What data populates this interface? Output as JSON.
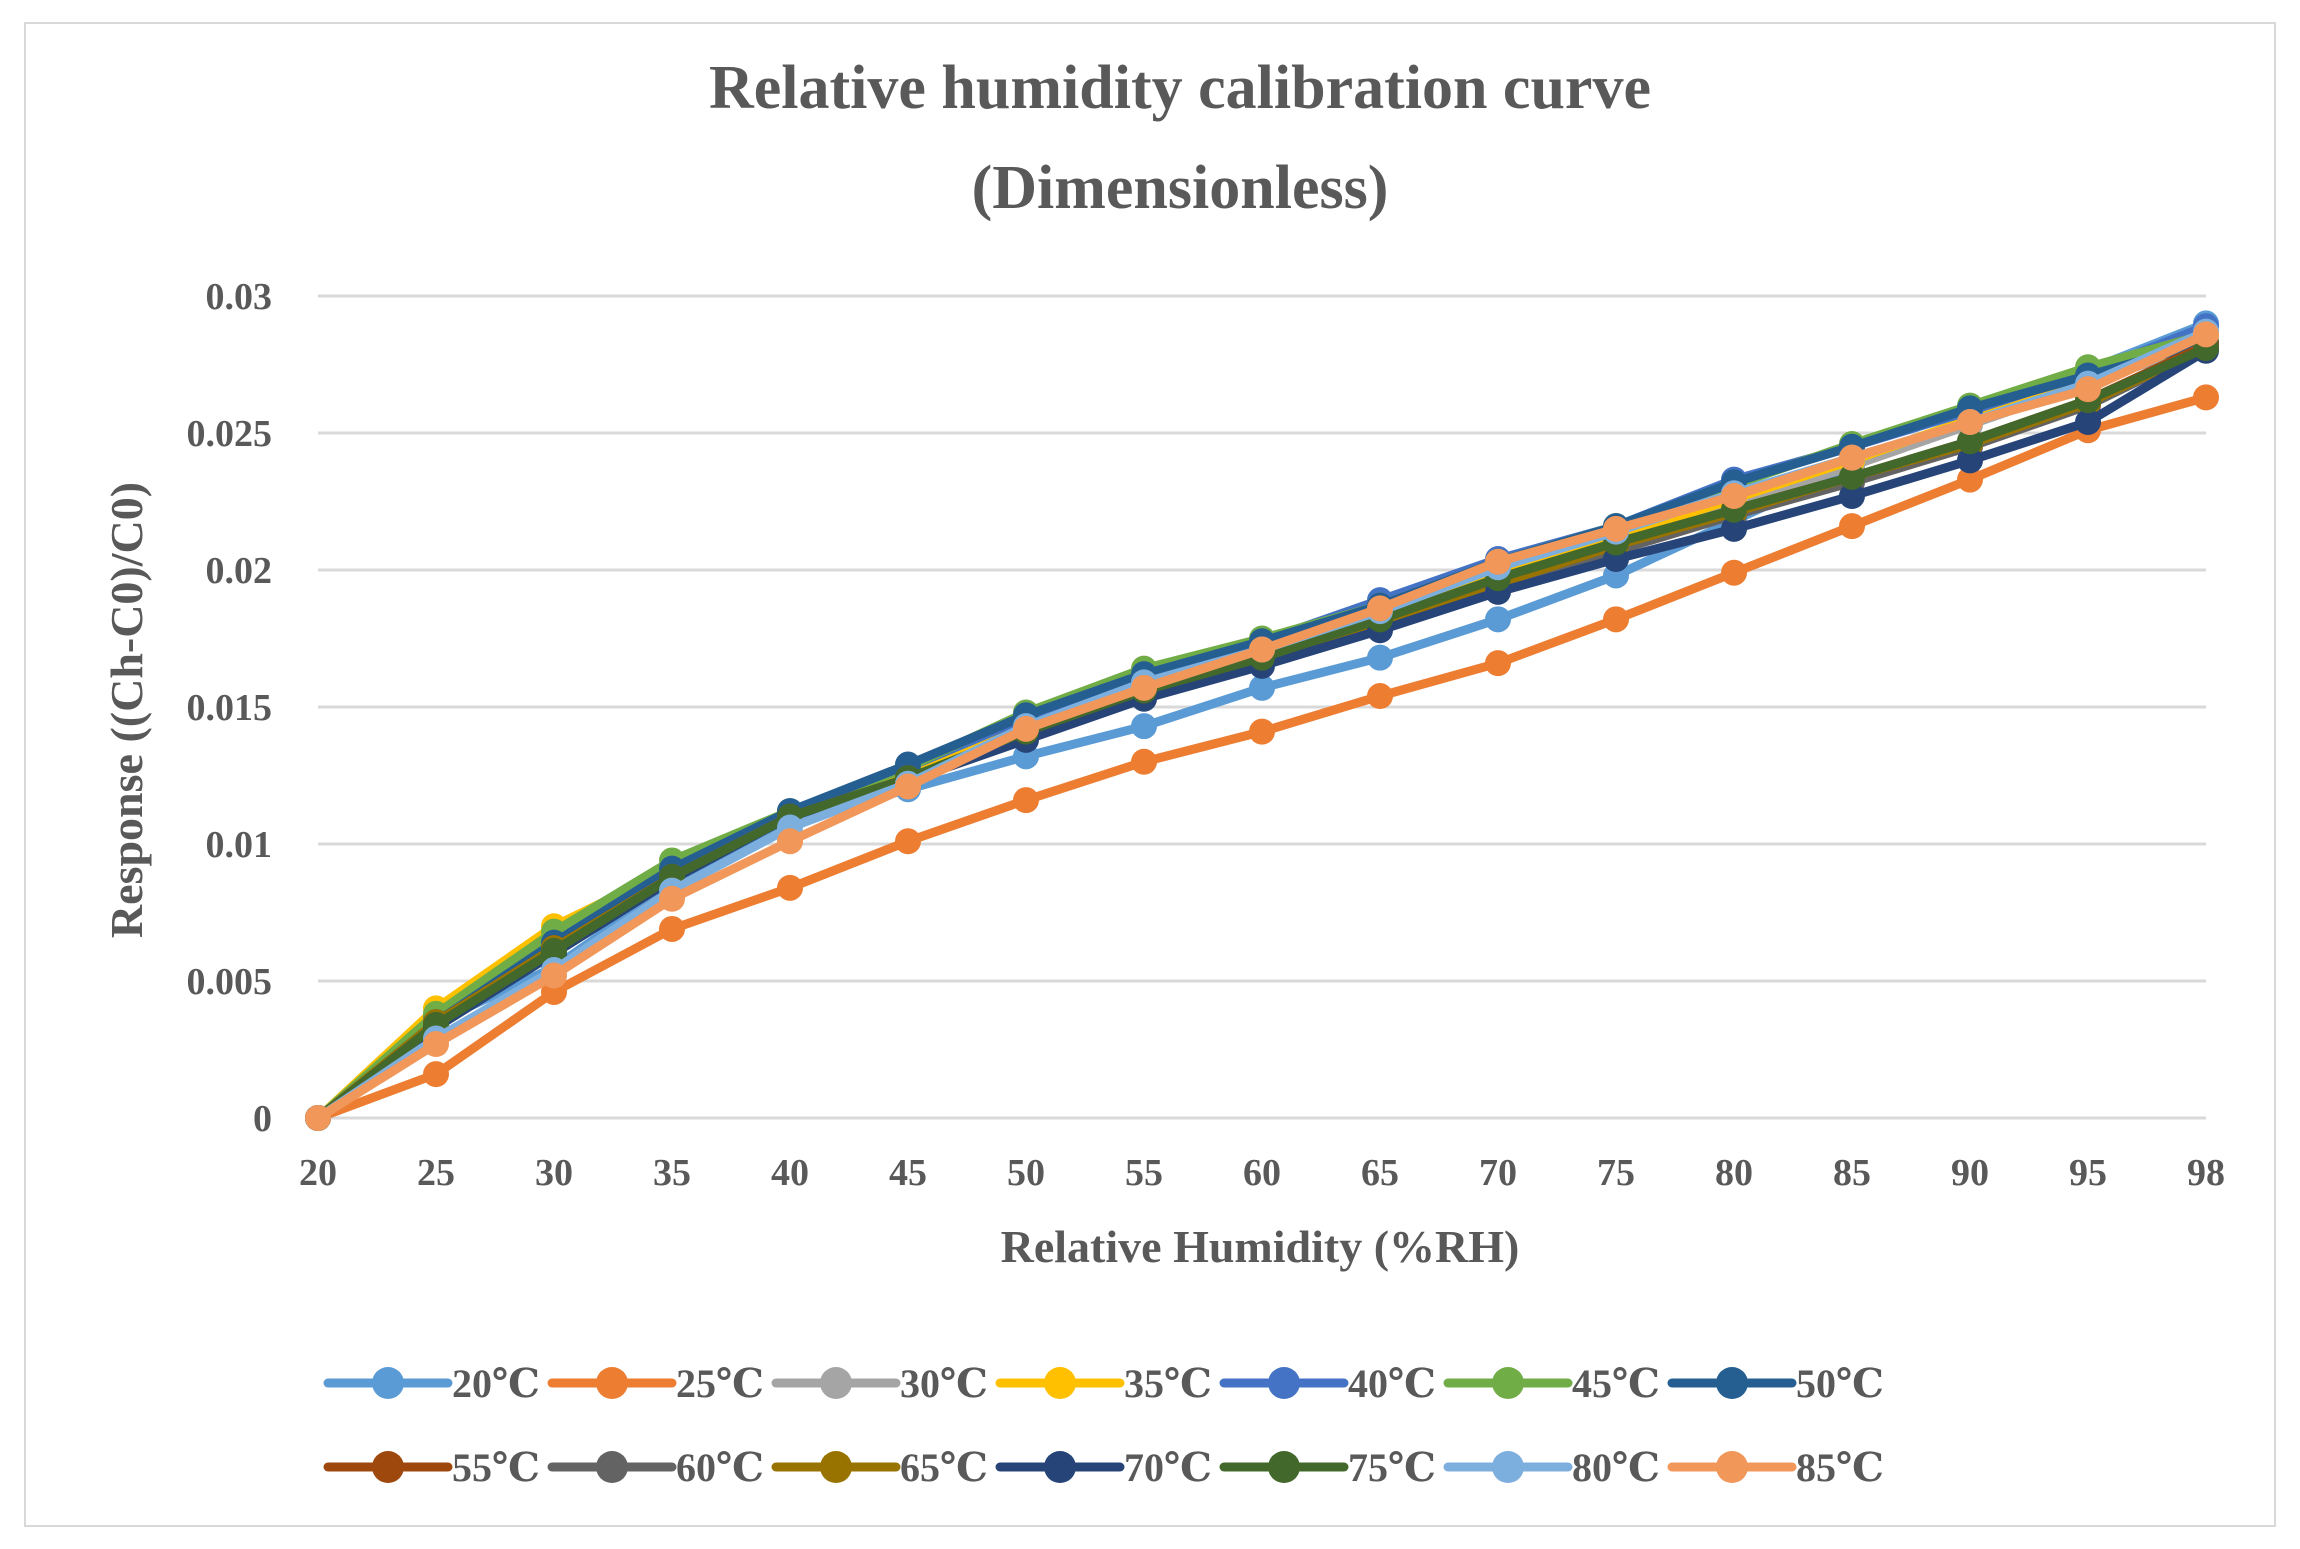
{
  "chart_data": {
    "type": "line",
    "title": [
      "Relative humidity calibration curve",
      "(Dimensionless)"
    ],
    "xlabel": "Relative Humidity (%RH)",
    "ylabel": "Response ((Ch-C0)/C0)",
    "categories": [
      "20",
      "25",
      "30",
      "35",
      "40",
      "45",
      "50",
      "55",
      "60",
      "65",
      "70",
      "75",
      "80",
      "85",
      "90",
      "95",
      "98"
    ],
    "ylim": [
      0,
      0.03
    ],
    "yticks": [
      0,
      0.005,
      0.01,
      0.015,
      0.02,
      0.025,
      0.03
    ],
    "ytick_labels": [
      "0",
      "0.005",
      "0.01",
      "0.015",
      "0.02",
      "0.025",
      "0.03"
    ],
    "grid": true,
    "legend_position": "bottom",
    "series": [
      {
        "name": "20℃",
        "color": "#5B9BD5",
        "values": [
          0,
          0.0035,
          0.0055,
          0.0085,
          0.0108,
          0.012,
          0.0132,
          0.0143,
          0.0157,
          0.0168,
          0.0182,
          0.0198,
          0.0218,
          0.0238,
          0.0255,
          0.0273,
          0.029
        ]
      },
      {
        "name": "25℃",
        "color": "#ED7D31",
        "values": [
          0,
          0.0016,
          0.0046,
          0.0069,
          0.0084,
          0.0101,
          0.0116,
          0.013,
          0.0141,
          0.0154,
          0.0166,
          0.0182,
          0.0199,
          0.0216,
          0.0233,
          0.0251,
          0.0263
        ]
      },
      {
        "name": "30℃",
        "color": "#A5A5A5",
        "values": [
          0,
          0.0036,
          0.0063,
          0.0089,
          0.011,
          0.0125,
          0.0142,
          0.0157,
          0.017,
          0.0183,
          0.0197,
          0.021,
          0.0224,
          0.0238,
          0.0253,
          0.0268,
          0.0283
        ]
      },
      {
        "name": "35℃",
        "color": "#FFC000",
        "values": [
          0,
          0.004,
          0.007,
          0.0091,
          0.0111,
          0.0126,
          0.0143,
          0.0158,
          0.0171,
          0.0184,
          0.0199,
          0.0212,
          0.0226,
          0.024,
          0.0255,
          0.0269,
          0.0284
        ]
      },
      {
        "name": "40℃",
        "color": "#4472C4",
        "values": [
          0,
          0.0037,
          0.0065,
          0.0091,
          0.0112,
          0.0128,
          0.0146,
          0.0161,
          0.0174,
          0.0189,
          0.0204,
          0.0216,
          0.0233,
          0.0245,
          0.0258,
          0.0272,
          0.0289
        ]
      },
      {
        "name": "45℃",
        "color": "#70AD47",
        "values": [
          0,
          0.0038,
          0.0068,
          0.0094,
          0.0112,
          0.0128,
          0.0148,
          0.0164,
          0.0175,
          0.0187,
          0.0203,
          0.0216,
          0.0231,
          0.0246,
          0.026,
          0.0274,
          0.0286
        ]
      },
      {
        "name": "50℃",
        "color": "#255E91",
        "values": [
          0,
          0.0035,
          0.0064,
          0.0091,
          0.0112,
          0.0129,
          0.0147,
          0.0162,
          0.0174,
          0.0187,
          0.0203,
          0.0216,
          0.0232,
          0.0245,
          0.0259,
          0.0271,
          0.0283
        ]
      },
      {
        "name": "55℃",
        "color": "#9E480E",
        "values": [
          0,
          0.0034,
          0.0062,
          0.0088,
          0.011,
          0.0124,
          0.014,
          0.0155,
          0.0167,
          0.0181,
          0.0196,
          0.0209,
          0.0222,
          0.0234,
          0.0247,
          0.0262,
          0.0282
        ]
      },
      {
        "name": "60℃",
        "color": "#636363",
        "values": [
          0,
          0.0034,
          0.0061,
          0.0088,
          0.011,
          0.0123,
          0.0139,
          0.0154,
          0.0166,
          0.018,
          0.0194,
          0.0207,
          0.022,
          0.0232,
          0.0245,
          0.026,
          0.0281
        ]
      },
      {
        "name": "65℃",
        "color": "#997300",
        "values": [
          0,
          0.0035,
          0.0062,
          0.0088,
          0.011,
          0.0124,
          0.014,
          0.0156,
          0.0168,
          0.0181,
          0.0195,
          0.0209,
          0.0221,
          0.0234,
          0.0246,
          0.0261,
          0.0281
        ]
      },
      {
        "name": "70℃",
        "color": "#264478",
        "values": [
          0,
          0.0033,
          0.006,
          0.0087,
          0.011,
          0.0123,
          0.0138,
          0.0153,
          0.0165,
          0.0178,
          0.0192,
          0.0204,
          0.0215,
          0.0227,
          0.024,
          0.0254,
          0.028
        ]
      },
      {
        "name": "75℃",
        "color": "#43682B",
        "values": [
          0,
          0.0034,
          0.0061,
          0.0088,
          0.011,
          0.0124,
          0.0141,
          0.0156,
          0.0168,
          0.0182,
          0.0197,
          0.021,
          0.0222,
          0.0234,
          0.0247,
          0.0262,
          0.0281
        ]
      },
      {
        "name": "80℃",
        "color": "#7CAFDD",
        "values": [
          0,
          0.0029,
          0.0054,
          0.0083,
          0.0106,
          0.0122,
          0.0143,
          0.0159,
          0.0171,
          0.0185,
          0.0201,
          0.0214,
          0.0228,
          0.0241,
          0.0254,
          0.0268,
          0.0287
        ]
      },
      {
        "name": "85℃",
        "color": "#F1975A",
        "values": [
          0,
          0.0027,
          0.0052,
          0.008,
          0.0101,
          0.0121,
          0.0142,
          0.0157,
          0.0171,
          0.0186,
          0.0203,
          0.0215,
          0.0227,
          0.0241,
          0.0254,
          0.0266,
          0.0286
        ]
      }
    ]
  }
}
